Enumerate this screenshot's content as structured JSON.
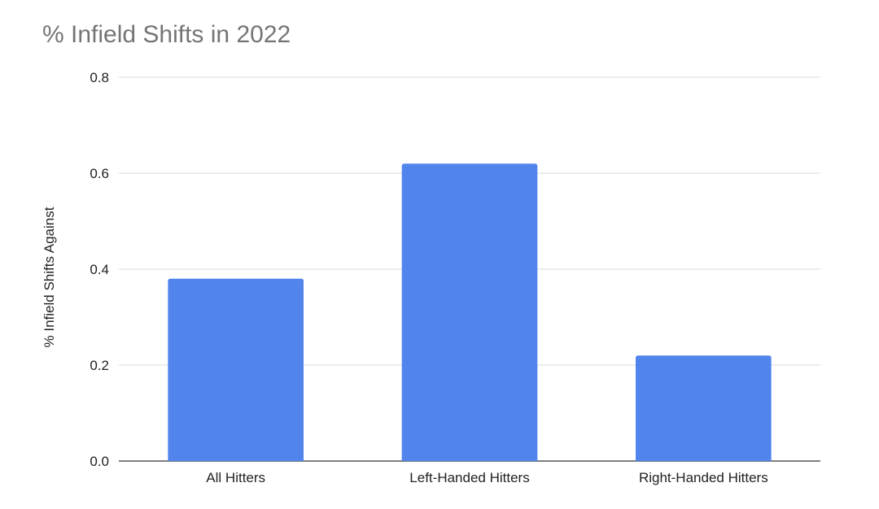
{
  "chart_data": {
    "type": "bar",
    "title": "% Infield Shifts in 2022",
    "xlabel": "",
    "ylabel": "% Infield Shifts Against",
    "categories": [
      "All Hitters",
      "Left-Handed Hitters",
      "Right-Handed Hitters"
    ],
    "values": [
      0.38,
      0.62,
      0.22
    ],
    "ylim": [
      0,
      0.8
    ],
    "yticks": [
      "0.0",
      "0.2",
      "0.4",
      "0.6",
      "0.8"
    ],
    "grid": true,
    "colors": {
      "bar": "#5185ec",
      "gridline": "#d9d9d9",
      "baseline": "#333333",
      "title": "#757575"
    }
  }
}
